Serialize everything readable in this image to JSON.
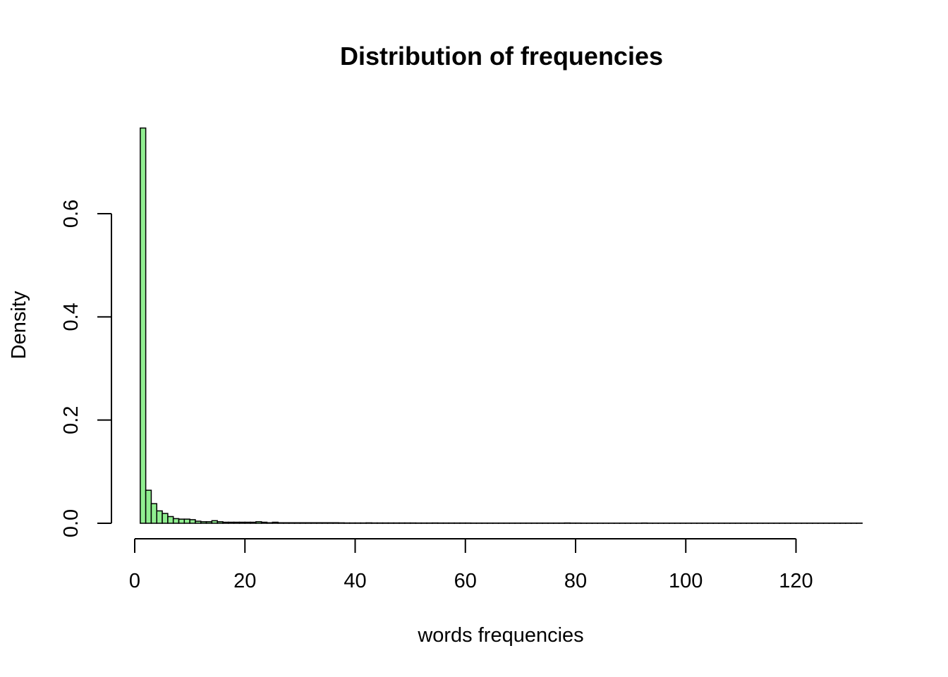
{
  "chart_data": {
    "type": "bar",
    "title": "Distribution of frequencies",
    "xlabel": "words frequencies",
    "ylabel": "Density",
    "xlim": [
      0,
      132
    ],
    "ylim": [
      0,
      0.77
    ],
    "x_ticks": [
      0,
      20,
      40,
      60,
      80,
      100,
      120
    ],
    "x_tick_labels": [
      "0",
      "20",
      "40",
      "60",
      "80",
      "100",
      "120"
    ],
    "y_ticks": [
      0,
      0.2,
      0.4,
      0.6
    ],
    "y_tick_labels": [
      "0.0",
      "0.2",
      "0.4",
      "0.6"
    ],
    "bin_width": 1,
    "bin_start": 1,
    "values": [
      0.766,
      0.064,
      0.038,
      0.024,
      0.019,
      0.013,
      0.009,
      0.008,
      0.008,
      0.007,
      0.004,
      0.003,
      0.003,
      0.005,
      0.003,
      0.002,
      0.002,
      0.002,
      0.002,
      0.002,
      0.002,
      0.003,
      0.002,
      0.001,
      0.002,
      0.001,
      0.001,
      0.001,
      0.001,
      0.001,
      0.001,
      0.001,
      0.001,
      0.001,
      0.001,
      0.001,
      0.0008,
      0.0006,
      0.0006,
      0.0006,
      0.0006,
      0.0008,
      0.0006,
      0.0006,
      0.0006,
      0.0006,
      0.0006,
      0.0006,
      0.0006,
      0.0006,
      0.0005,
      0.0005,
      0.0005,
      0.0006,
      0.0005,
      0.0005,
      0.0005,
      0.0005,
      0.0005,
      0.0005,
      0.0004,
      0.0004,
      0.0004,
      0.0004,
      0.0004,
      0.0004,
      0.0004,
      0.0004,
      0.0004,
      0.0004,
      0.0004,
      0.0004,
      0.0004,
      0.0004,
      0.0004,
      0.0004,
      0.0004,
      0.0006,
      0.0004,
      0.0004,
      0.0003,
      0.0003,
      0.0003,
      0.0003,
      0.0003,
      0.0003,
      0.0003,
      0.0003,
      0.0003,
      0.0003,
      0.0003,
      0.0005,
      0.0003,
      0.0003,
      0.0003,
      0.0003,
      0.0003,
      0.0003,
      0.0003,
      0.0003,
      0.0003,
      0.0003,
      0.0003,
      0.0003,
      0.0003,
      0.0003,
      0.0003,
      0.0003,
      0.0003,
      0.0003,
      0.0003,
      0.0003,
      0.0003,
      0.0003,
      0.0003,
      0.0003,
      0.0003,
      0.0003,
      0.0003,
      0.0003,
      0.0003,
      0.0003,
      0.0003,
      0.0003,
      0.0003,
      0.0003,
      0.0003,
      0.0003,
      0.0003,
      0.0003,
      0.0003
    ],
    "bar_color": "#90EE90",
    "bar_border_color": "#000000",
    "grid": false
  }
}
